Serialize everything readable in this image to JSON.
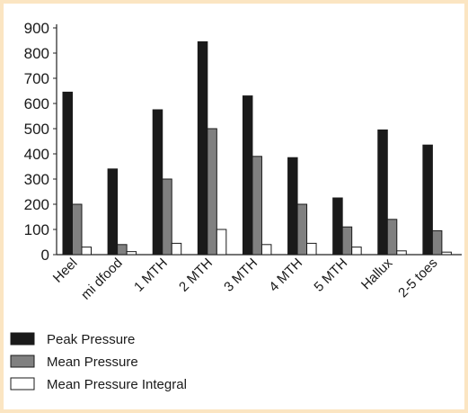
{
  "chart_data": {
    "type": "bar",
    "categories": [
      "Heel",
      "mi dfood",
      "1 MTH",
      "2 MTH",
      "3 MTH",
      "4 MTH",
      "5 MTH",
      "Hallux",
      "2-5 toes"
    ],
    "series": [
      {
        "name": "Peak Pressure",
        "color": "#1a1a1a",
        "values": [
          645,
          340,
          575,
          845,
          630,
          385,
          225,
          495,
          435
        ]
      },
      {
        "name": "Mean Pressure",
        "color": "#808080",
        "values": [
          200,
          40,
          300,
          500,
          390,
          200,
          110,
          140,
          95
        ]
      },
      {
        "name": "Mean Pressure Integral",
        "color": "#ffffff",
        "values": [
          30,
          12,
          45,
          100,
          40,
          45,
          30,
          15,
          10
        ]
      }
    ],
    "ylim": [
      0,
      900
    ],
    "yticks": [
      0,
      100,
      200,
      300,
      400,
      500,
      600,
      700,
      800,
      900
    ],
    "grid": false,
    "legend_position": "bottom-left"
  }
}
